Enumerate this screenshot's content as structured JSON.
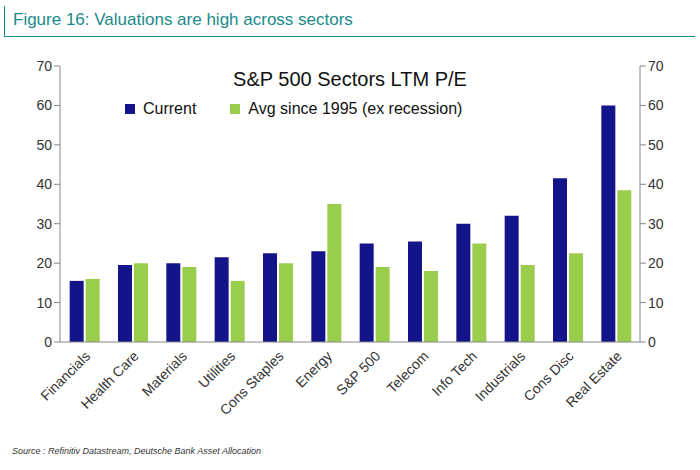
{
  "chart_data": {
    "type": "bar",
    "figure_title": "Figure 16: Valuations are high across sectors",
    "title": "S&P 500 Sectors LTM P/E",
    "source": "Source : Refinitiv Datastream, Deutsche Bank Asset Allocation",
    "categories": [
      "Financials",
      "Health Care",
      "Materials",
      "Utilities",
      "Cons Staples",
      "Energy",
      "S&P 500",
      "Telecom",
      "Info Tech",
      "Industrials",
      "Cons Disc",
      "Real Estate"
    ],
    "series": [
      {
        "name": "Current",
        "color": "#14148a",
        "values": [
          15.5,
          19.5,
          20,
          21.5,
          22.5,
          23,
          25,
          25.5,
          30,
          32,
          41.5,
          60
        ]
      },
      {
        "name": "Avg since 1995 (ex recession)",
        "color": "#9acd4b",
        "values": [
          16,
          20,
          19,
          15.5,
          20,
          35,
          19,
          18,
          25,
          19.5,
          22.5,
          38.5
        ]
      }
    ],
    "ylim": [
      0,
      70
    ],
    "yticks": [
      0,
      10,
      20,
      30,
      40,
      50,
      60,
      70
    ],
    "y2lim": [
      0,
      70
    ],
    "y2ticks": [
      0,
      10,
      20,
      30,
      40,
      50,
      60,
      70
    ],
    "grid": false,
    "legend": "top-left"
  }
}
